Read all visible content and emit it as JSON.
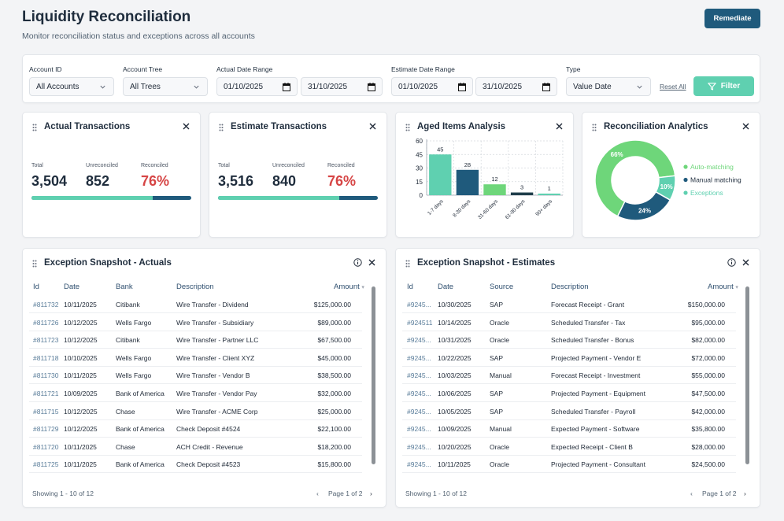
{
  "header": {
    "title": "Liquidity Reconciliation",
    "subtitle": "Monitor reconciliation status and exceptions across all accounts",
    "remediate_label": "Remediate"
  },
  "filters": {
    "account_id": {
      "label": "Account ID",
      "value": "All Accounts"
    },
    "account_tree": {
      "label": "Account Tree",
      "value": "All Trees"
    },
    "actual_range": {
      "label": "Actual Date Range",
      "from": "01/10/2025",
      "to": "31/10/2025"
    },
    "estimate_range": {
      "label": "Estimate Date Range",
      "from": "01/10/2025",
      "to": "31/10/2025"
    },
    "type": {
      "label": "Type",
      "value": "Value Date"
    },
    "reset_label": "Reset All",
    "filter_label": "Filter"
  },
  "actual_tx": {
    "title": "Actual Transactions",
    "total_label": "Total",
    "total": "3,504",
    "unrec_label": "Unreconciled",
    "unrec": "852",
    "rec_label": "Reconciled",
    "rec": "76%",
    "progress": 0.76
  },
  "estimate_tx": {
    "title": "Estimate Transactions",
    "total_label": "Total",
    "total": "3,516",
    "unrec_label": "Unreconciled",
    "unrec": "840",
    "rec_label": "Reconciled",
    "rec": "76%",
    "progress": 0.76
  },
  "aged": {
    "title": "Aged Items Analysis"
  },
  "recon_analytics": {
    "title": "Reconciliation Analytics"
  },
  "chart_data": [
    {
      "type": "bar",
      "title": "Aged Items Analysis",
      "categories": [
        "1-7 days",
        "8-30 days",
        "31-60 days",
        "61-90 days",
        "90+ days"
      ],
      "values": [
        45,
        28,
        12,
        3,
        1
      ],
      "colors": [
        "#5fd0b0",
        "#1f5a7c",
        "#6ed67a",
        "#1f3d4a",
        "#5fd0b0"
      ],
      "yticks": [
        0,
        15,
        30,
        45,
        60
      ],
      "ylim": [
        0,
        60
      ]
    },
    {
      "type": "pie",
      "title": "Reconciliation Analytics",
      "labels": [
        "Auto-matching",
        "Manual matching",
        "Exceptions"
      ],
      "values": [
        66,
        24,
        10
      ],
      "value_labels": [
        "66%",
        "24%",
        "10%"
      ],
      "colors": [
        "#6ed67a",
        "#1f5a7c",
        "#5fd0b0"
      ]
    }
  ],
  "actuals_table": {
    "title": "Exception Snapshot - Actuals",
    "columns": [
      "Id",
      "Date",
      "Bank",
      "Description",
      "Amount"
    ],
    "rows": [
      [
        "#811732",
        "10/11/2025",
        "Citibank",
        "Wire Transfer - Dividend",
        "$125,000.00"
      ],
      [
        "#811726",
        "10/12/2025",
        "Wells Fargo",
        "Wire Transfer - Subsidiary",
        "$89,000.00"
      ],
      [
        "#811723",
        "10/12/2025",
        "Citibank",
        "Wire Transfer - Partner LLC",
        "$67,500.00"
      ],
      [
        "#811718",
        "10/10/2025",
        "Wells Fargo",
        "Wire Transfer - Client XYZ",
        "$45,000.00"
      ],
      [
        "#811730",
        "10/11/2025",
        "Wells Fargo",
        "Wire Transfer - Vendor B",
        "$38,500.00"
      ],
      [
        "#811721",
        "10/09/2025",
        "Bank of America",
        "Wire Transfer - Vendor Pay",
        "$32,000.00"
      ],
      [
        "#811715",
        "10/12/2025",
        "Chase",
        "Wire Transfer - ACME Corp",
        "$25,000.00"
      ],
      [
        "#811729",
        "10/12/2025",
        "Bank of America",
        "Check Deposit #4524",
        "$22,100.00"
      ],
      [
        "#811720",
        "10/11/2025",
        "Chase",
        "ACH Credit - Revenue",
        "$18,200.00"
      ],
      [
        "#811725",
        "10/11/2025",
        "Bank of America",
        "Check Deposit #4523",
        "$15,800.00"
      ]
    ],
    "showing": "Showing 1 - 10 of 12",
    "page": "Page 1 of 2"
  },
  "estimates_table": {
    "title": "Exception Snapshot - Estimates",
    "columns": [
      "Id",
      "Date",
      "Source",
      "Description",
      "Amount"
    ],
    "rows": [
      [
        "#9245...",
        "10/30/2025",
        "SAP",
        "Forecast Receipt - Grant",
        "$150,000.00"
      ],
      [
        "#924511",
        "10/14/2025",
        "Oracle",
        "Scheduled Transfer - Tax",
        "$95,000.00"
      ],
      [
        "#9245...",
        "10/31/2025",
        "Oracle",
        "Scheduled Transfer - Bonus",
        "$82,000.00"
      ],
      [
        "#9245...",
        "10/22/2025",
        "SAP",
        "Projected Payment - Vendor E",
        "$72,000.00"
      ],
      [
        "#9245...",
        "10/03/2025",
        "Manual",
        "Forecast Receipt - Investment",
        "$55,000.00"
      ],
      [
        "#9245...",
        "10/06/2025",
        "SAP",
        "Projected Payment - Equipment",
        "$47,500.00"
      ],
      [
        "#9245...",
        "10/05/2025",
        "SAP",
        "Scheduled Transfer - Payroll",
        "$42,000.00"
      ],
      [
        "#9245...",
        "10/09/2025",
        "Manual",
        "Expected Payment - Software",
        "$35,800.00"
      ],
      [
        "#9245...",
        "10/20/2025",
        "Oracle",
        "Expected Receipt - Client B",
        "$28,000.00"
      ],
      [
        "#9245...",
        "10/11/2025",
        "Oracle",
        "Projected Payment - Consultant",
        "$24,500.00"
      ]
    ],
    "showing": "Showing 1 - 10 of 12",
    "page": "Page 1 of 2"
  }
}
